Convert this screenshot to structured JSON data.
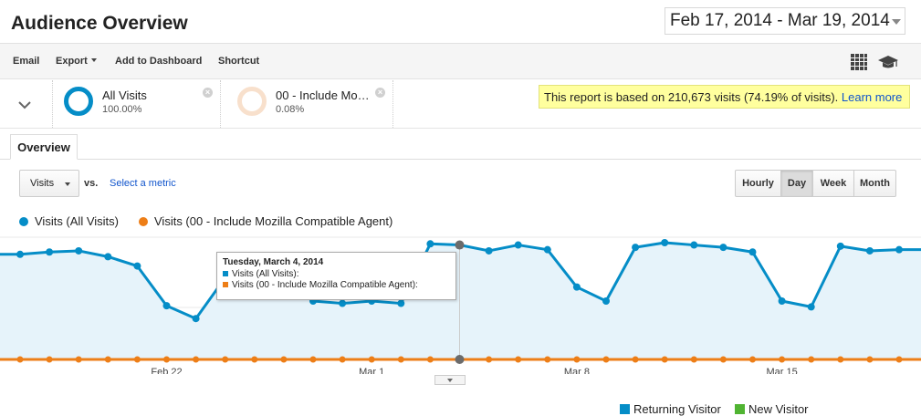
{
  "header": {
    "title": "Audience Overview",
    "date_range": "Feb 17, 2014 - Mar 19, 2014"
  },
  "toolbar": {
    "items": [
      "Email",
      "Export",
      "Add to Dashboard",
      "Shortcut"
    ],
    "icons": [
      "grid-icon",
      "graduation-cap-icon"
    ]
  },
  "segments": [
    {
      "name": "All Visits",
      "percent": "100.00%",
      "color": "#058dc7"
    },
    {
      "name": "00 - Include Mo…",
      "percent": "0.08%",
      "color": "#ed7e17"
    }
  ],
  "notice": {
    "text": "This report is based on 210,673 visits (74.19% of visits).",
    "link": "Learn more"
  },
  "tabs": [
    {
      "label": "Overview",
      "active": true
    }
  ],
  "metric": {
    "selected": "Visits",
    "vs": "vs.",
    "select_metric": "Select a metric"
  },
  "granularity": {
    "options": [
      "Hourly",
      "Day",
      "Week",
      "Month"
    ],
    "active": "Day"
  },
  "legend": [
    {
      "label": "Visits (All Visits)",
      "color": "#058dc7"
    },
    {
      "label": "Visits (00 - Include Mozilla Compatible Agent)",
      "color": "#ed7e17"
    }
  ],
  "tooltip": {
    "title": "Tuesday, March 4, 2014",
    "rows": [
      "Visits (All Visits):",
      "Visits (00 - Include Mozilla Compatible Agent):"
    ]
  },
  "chart_data": {
    "type": "line",
    "x": [
      "Feb 17",
      "Feb 18",
      "Feb 19",
      "Feb 20",
      "Feb 21",
      "Feb 22",
      "Feb 23",
      "Feb 24",
      "Feb 25",
      "Feb 26",
      "Feb 27",
      "Feb 28",
      "Mar 1",
      "Mar 2",
      "Mar 3",
      "Mar 4",
      "Mar 5",
      "Mar 6",
      "Mar 7",
      "Mar 8",
      "Mar 9",
      "Mar 10",
      "Mar 11",
      "Mar 12",
      "Mar 13",
      "Mar 14",
      "Mar 15",
      "Mar 16",
      "Mar 17",
      "Mar 18",
      "Mar 19"
    ],
    "x_tick_labels": [
      "Feb 22",
      "Mar 1",
      "Mar 8",
      "Mar 15"
    ],
    "series": [
      {
        "name": "Visits (All Visits)",
        "color": "#058dc7",
        "values": [
          90,
          92,
          93,
          88,
          80,
          46,
          35,
          70,
          78,
          82,
          50,
          48,
          50,
          48,
          99,
          98,
          93,
          98,
          94,
          62,
          50,
          96,
          100,
          98,
          96,
          92,
          50,
          45,
          97,
          93,
          94
        ]
      },
      {
        "name": "Visits (00 - Include Mozilla Compatible Agent)",
        "color": "#ed7e17",
        "values": [
          0,
          0,
          0,
          0,
          0,
          0,
          0,
          0,
          0,
          0,
          0,
          0,
          0,
          0,
          0,
          0,
          0,
          0,
          0,
          0,
          0,
          0,
          0,
          0,
          0,
          0,
          0,
          0,
          0,
          0,
          0
        ]
      }
    ],
    "hover_index": 15,
    "grid": true
  },
  "bottom_legend": [
    {
      "label": "Returning Visitor",
      "color": "#058dc7"
    },
    {
      "label": "New Visitor",
      "color": "#50b432"
    }
  ]
}
